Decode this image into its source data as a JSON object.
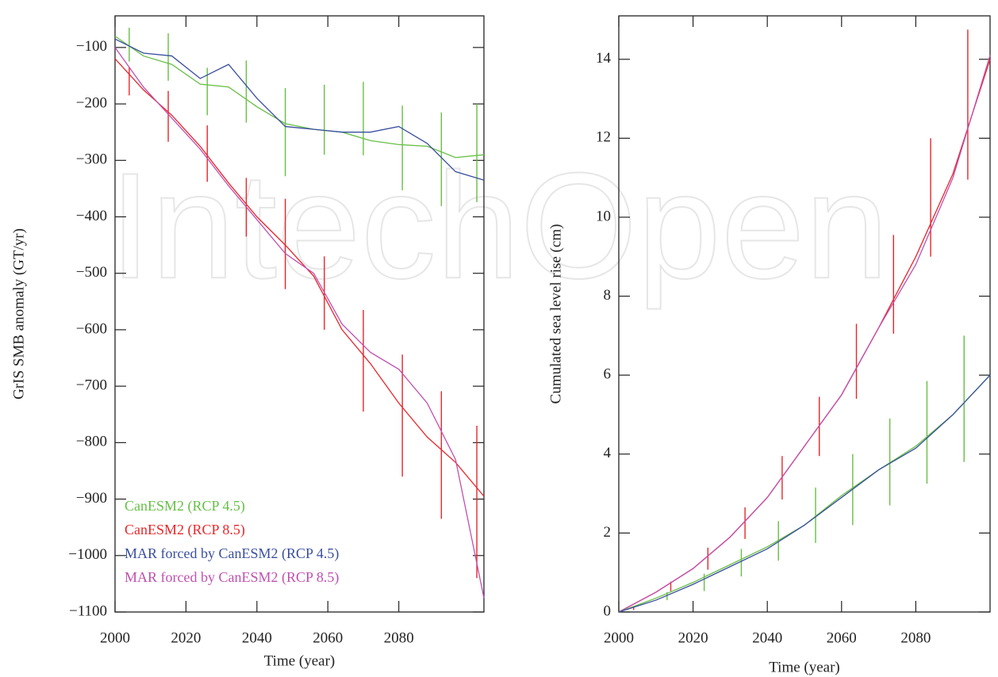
{
  "watermark": "IntechOpen",
  "chart_data": [
    {
      "type": "line",
      "y_label": "GrIS SMB anomaly (GT/yr)",
      "x_label": "Time (year)",
      "xlim": [
        2000,
        2104
      ],
      "ylim": [
        -1100,
        -44
      ],
      "xticks": [
        2000,
        2020,
        2040,
        2060,
        2080
      ],
      "yticks": [
        {
          "value": -1100,
          "label": "−1100"
        },
        {
          "value": -1000,
          "label": "−1000"
        },
        {
          "value": -900,
          "label": "−900"
        },
        {
          "value": -800,
          "label": "−800"
        },
        {
          "value": -700,
          "label": "−700"
        },
        {
          "value": -600,
          "label": "−600"
        },
        {
          "value": -500,
          "label": "−500"
        },
        {
          "value": -400,
          "label": "−400"
        },
        {
          "value": -300,
          "label": "−300"
        },
        {
          "value": -200,
          "label": "−200"
        },
        {
          "value": -100,
          "label": "−100"
        }
      ],
      "legend": "lower left",
      "x": [
        2000,
        2008,
        2016,
        2024,
        2032,
        2040,
        2048,
        2056,
        2064,
        2072,
        2080,
        2088,
        2096,
        2104
      ],
      "series": [
        {
          "name": "CanESM2 (RCP 4.5)",
          "color": "#66bf45",
          "values": [
            -80,
            -115,
            -130,
            -165,
            -170,
            -205,
            -235,
            -245,
            -250,
            -265,
            -272,
            -275,
            -295,
            -290
          ],
          "error_bars": {
            "x": [
              2004,
              2015,
              2026,
              2037,
              2048,
              2059,
              2070,
              2081,
              2092,
              2102
            ],
            "values": [
              -95,
              -117,
              -178,
              -178,
              -250,
              -228,
              -226,
              -278,
              -298,
              -287
            ],
            "errors": [
              30,
              42,
              42,
              55,
              78,
              62,
              65,
              75,
              83,
              87
            ]
          }
        },
        {
          "name": "CanESM2 (RCP 8.5)",
          "color": "#e8262a",
          "values": [
            -120,
            -175,
            -220,
            -275,
            -340,
            -400,
            -450,
            -505,
            -600,
            -660,
            -730,
            -790,
            -835,
            -895
          ],
          "error_bars": {
            "x": [
              2004,
              2015,
              2026,
              2037,
              2048,
              2059,
              2070,
              2081,
              2092,
              2102
            ],
            "values": [
              -160,
              -222,
              -288,
              -383,
              -448,
              -535,
              -655,
              -752,
              -822,
              -905
            ],
            "errors": [
              25,
              45,
              50,
              52,
              80,
              65,
              90,
              108,
              113,
              135
            ]
          }
        },
        {
          "name": "MAR forced by CanESM2 (RCP 4.5)",
          "color": "#3a4f9f",
          "values": [
            -85,
            -110,
            -115,
            -155,
            -130,
            -190,
            -240,
            -245,
            -250,
            -250,
            -240,
            -270,
            -320,
            -335
          ]
        },
        {
          "name": "MAR forced by CanESM2 (RCP 8.5)",
          "color": "#c050b0",
          "values": [
            -100,
            -170,
            -225,
            -280,
            -345,
            -405,
            -465,
            -500,
            -590,
            -640,
            -670,
            -730,
            -830,
            -1075
          ]
        }
      ]
    },
    {
      "type": "line",
      "y_label": "Cumulated sea level rise (cm)",
      "x_label": "Time (year)",
      "xlim": [
        2000,
        2100
      ],
      "ylim": [
        0,
        15.1
      ],
      "xticks": [
        2000,
        2020,
        2040,
        2060,
        2080
      ],
      "yticks": [
        0,
        2,
        4,
        6,
        8,
        10,
        12,
        14
      ],
      "x": [
        2000,
        2010,
        2020,
        2030,
        2040,
        2050,
        2060,
        2070,
        2080,
        2090,
        2100
      ],
      "series": [
        {
          "color": "#e8262a",
          "values": [
            0,
            0.5,
            1.1,
            1.9,
            2.9,
            4.2,
            5.5,
            7.2,
            9.0,
            11.1,
            14.0
          ],
          "error_bars": {
            "x": [
              2004,
              2014,
              2024,
              2034,
              2044,
              2054,
              2064,
              2074,
              2084,
              2094
            ],
            "values": [
              0.1,
              0.65,
              1.35,
              2.25,
              3.4,
              4.7,
              6.35,
              8.3,
              10.5,
              12.85
            ],
            "errors": [
              0.05,
              0.12,
              0.28,
              0.4,
              0.55,
              0.75,
              0.95,
              1.25,
              1.5,
              1.9
            ]
          }
        },
        {
          "color": "#c050b0",
          "values": [
            0,
            0.5,
            1.1,
            1.9,
            2.9,
            4.2,
            5.5,
            7.2,
            8.8,
            11.0,
            14.1
          ]
        },
        {
          "color": "#66bf45",
          "values": [
            0,
            0.35,
            0.75,
            1.2,
            1.65,
            2.2,
            2.95,
            3.6,
            4.2,
            5.0,
            6.0
          ],
          "error_bars": {
            "x": [
              2013,
              2023,
              2033,
              2043,
              2053,
              2063,
              2073,
              2083,
              2093
            ],
            "values": [
              0.4,
              0.75,
              1.25,
              1.8,
              2.45,
              3.1,
              3.8,
              4.55,
              5.4
            ],
            "errors": [
              0.1,
              0.22,
              0.35,
              0.5,
              0.7,
              0.9,
              1.1,
              1.3,
              1.6
            ]
          }
        },
        {
          "color": "#3a4f9f",
          "values": [
            0,
            0.3,
            0.7,
            1.15,
            1.6,
            2.2,
            2.9,
            3.6,
            4.15,
            5.0,
            6.0
          ]
        }
      ]
    }
  ]
}
